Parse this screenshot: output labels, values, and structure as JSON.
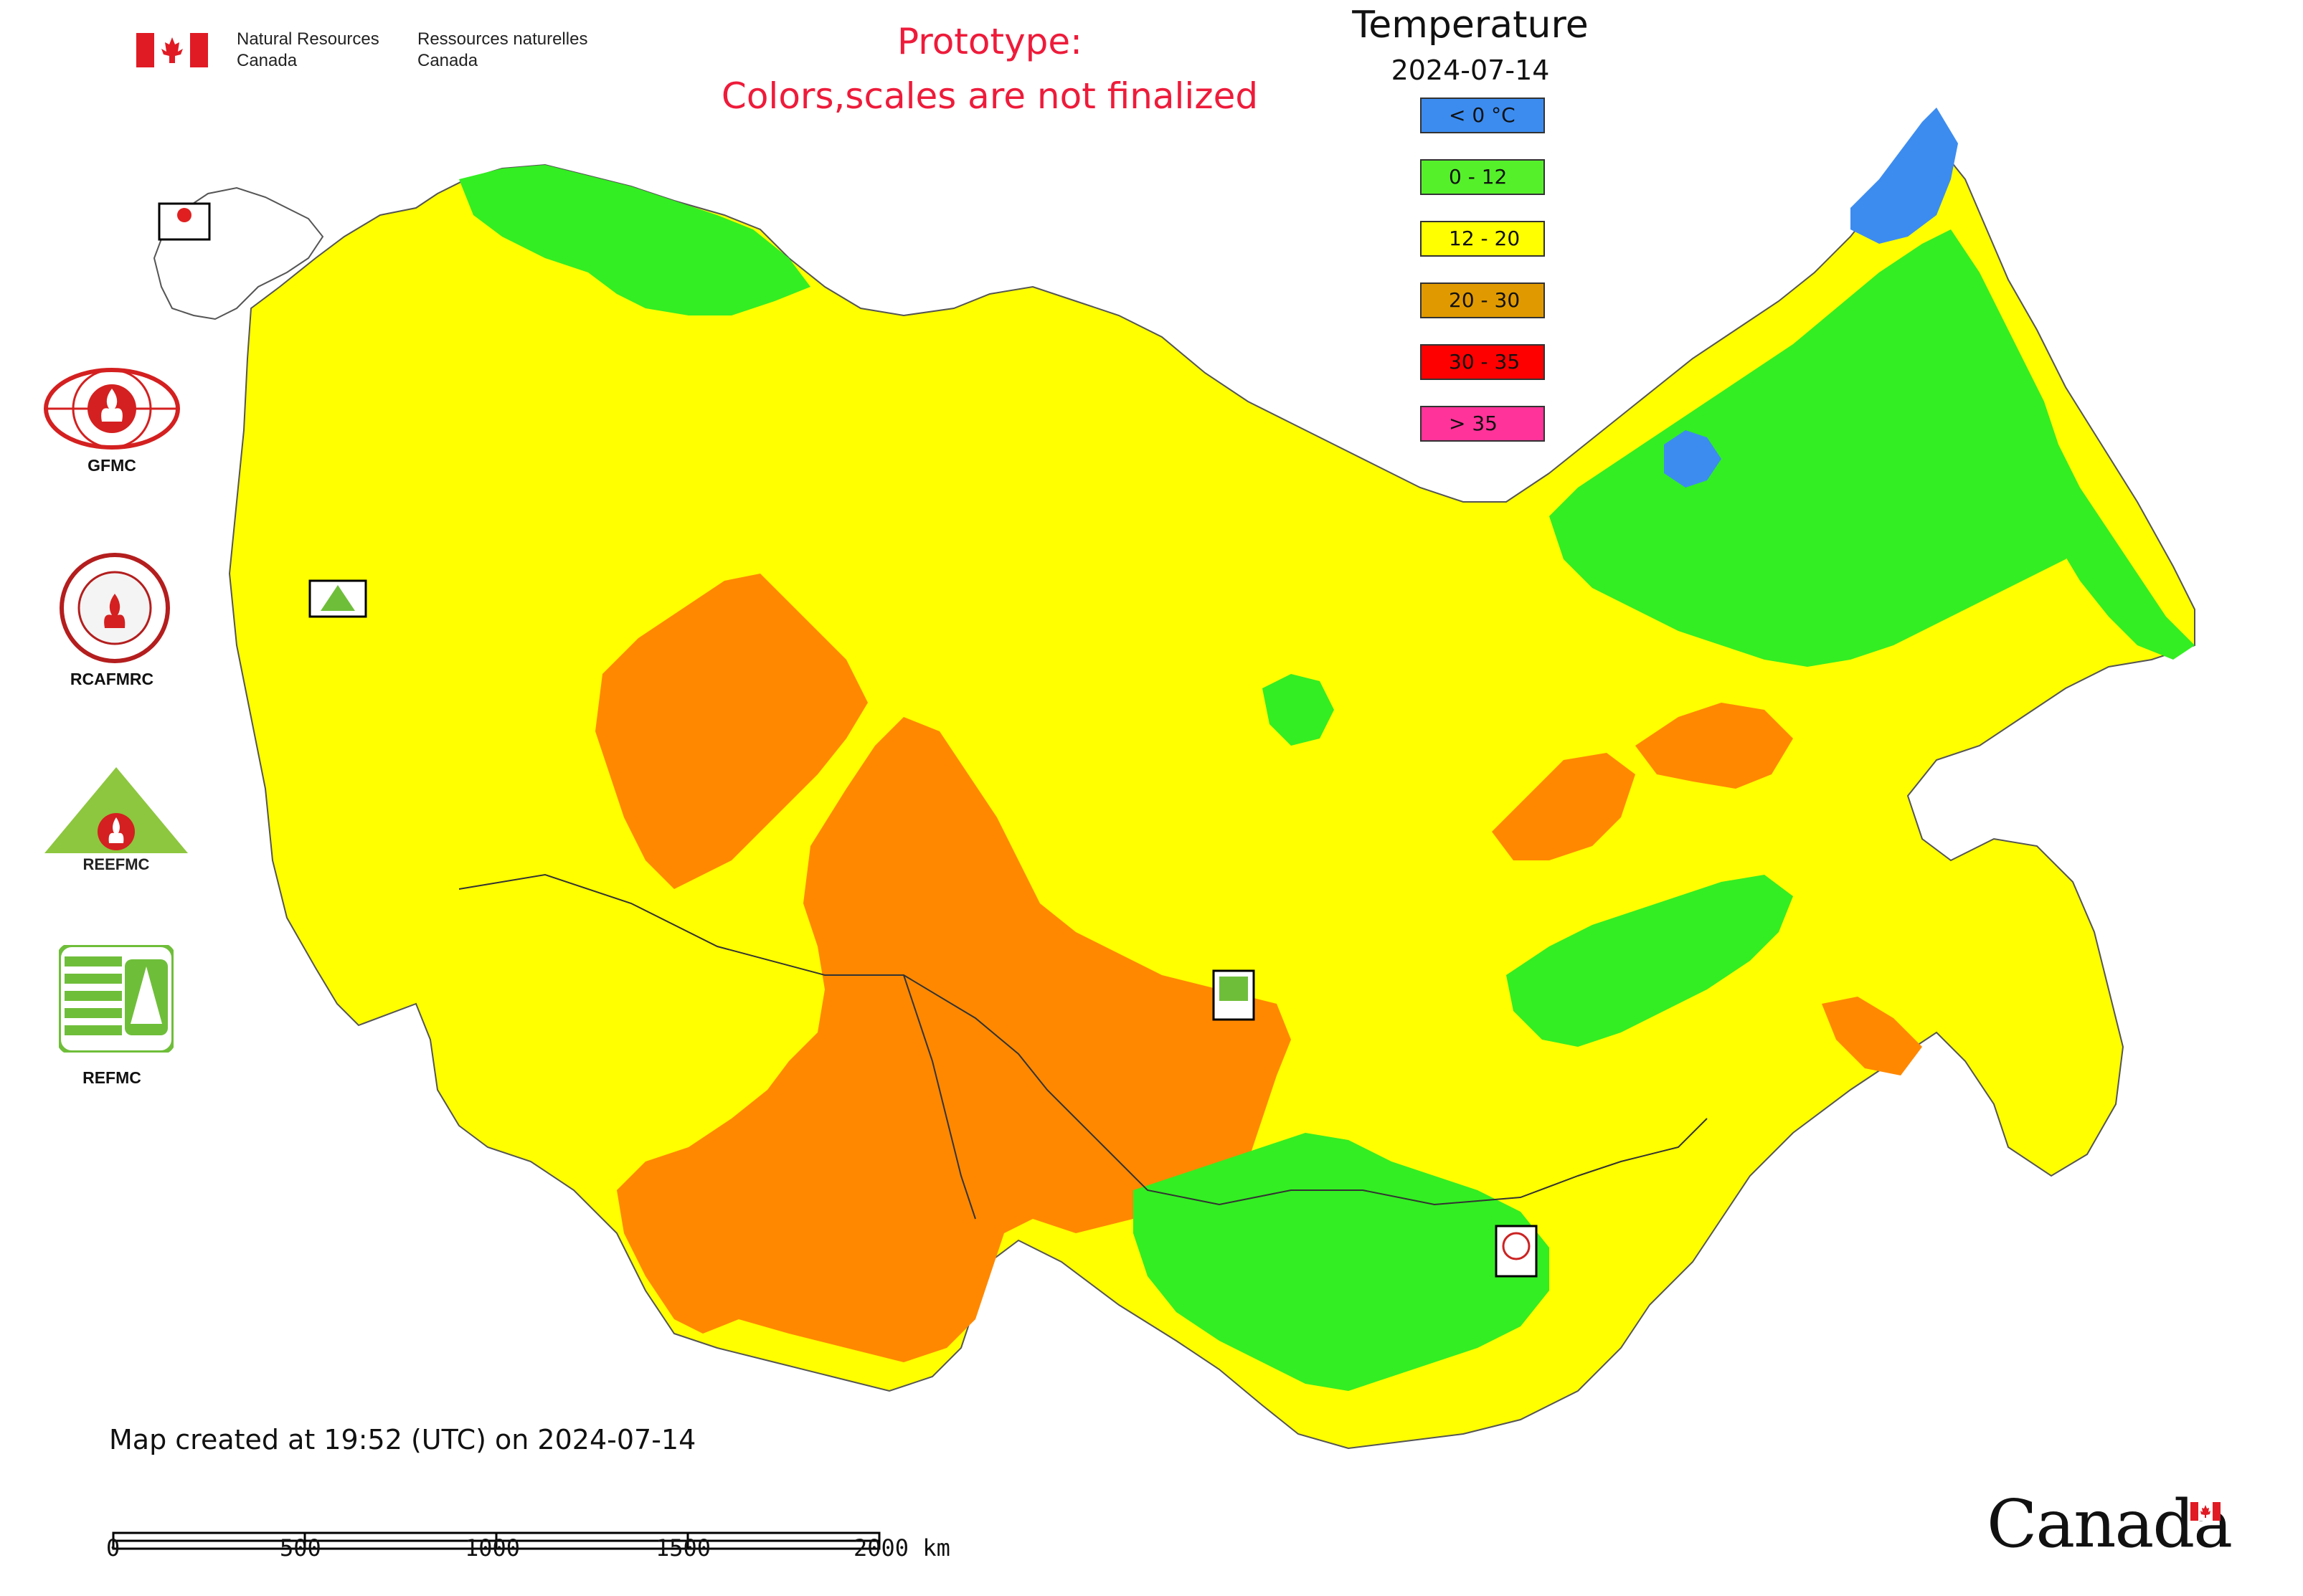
{
  "header": {
    "nrcan_en_line1": "Natural Resources",
    "nrcan_en_line2": "Canada",
    "nrcan_fr_line1": "Ressources naturelles",
    "nrcan_fr_line2": "Canada",
    "prototype_line1": "Prototype:",
    "prototype_line2": "Colors,scales are not finalized",
    "prototype_color": "#ee1b3a"
  },
  "legend": {
    "title": "Temperature",
    "date": "2024-07-14",
    "items": [
      {
        "label": "< 0 °C",
        "color": "#3c8cf0"
      },
      {
        "label": "0 - 12",
        "color": "#55f02a"
      },
      {
        "label": "12 - 20",
        "color": "#ffff00"
      },
      {
        "label": "20 - 30",
        "color": "#e09a00"
      },
      {
        "label": "30 - 35",
        "color": "#ff0000"
      },
      {
        "label": "> 35",
        "color": "#ff3399"
      }
    ]
  },
  "map_colors": {
    "cold": "#3c8cf0",
    "cool": "#33ee22",
    "mild": "#ffff00",
    "warm": "#ff8800",
    "outline": "#555555"
  },
  "side_logos": [
    {
      "id": "gfmc",
      "label": "GFMC"
    },
    {
      "id": "rcafmrc",
      "label": "RCAFMRC"
    },
    {
      "id": "reefmc",
      "label": ""
    },
    {
      "id": "refmc",
      "label": "REFMC"
    }
  ],
  "map_markers": [
    {
      "id": "gfmc-marker",
      "text": "GFMC"
    },
    {
      "id": "reefmc-marker",
      "text": "REEFMC"
    },
    {
      "id": "refmc-marker",
      "text": "REFMC"
    },
    {
      "id": "rcafmrc-marker",
      "text": "RCAFMRC"
    }
  ],
  "reefmc_logo_text": "REEFMC",
  "footer": {
    "created": "Map created at 19:52 (UTC) on 2024-07-14",
    "scale_labels": [
      "0",
      "500",
      "1000",
      "1500",
      "2000 km"
    ],
    "canada_wordmark": "Canada"
  }
}
